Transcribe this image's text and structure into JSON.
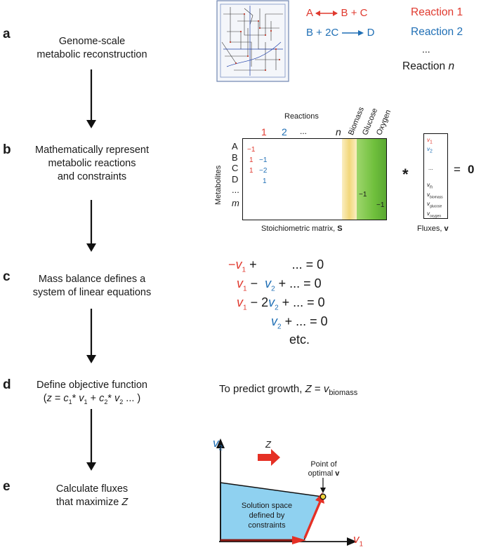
{
  "steps": [
    {
      "letter": "a",
      "line1": "Genome-scale",
      "line2": "metabolic reconstruction"
    },
    {
      "letter": "b",
      "line1": "Mathematically represent",
      "line2": "metabolic reactions",
      "line3": "and constraints"
    },
    {
      "letter": "c",
      "line1": "Mass balance defines a",
      "line2": "system of linear equations"
    },
    {
      "letter": "d",
      "line1": "Define objective function"
    },
    {
      "letter": "e",
      "line1": "Calculate fluxes",
      "line2": "that maximize Z"
    }
  ],
  "objective_formula": {
    "open": "(",
    "z": "z",
    "eq": " = ",
    "c1": "c",
    "sub1": "1",
    "mult1": "* ",
    "v1": "v",
    "vsub1": "1",
    "plus": " + ",
    "c2": "c",
    "sub2": "2",
    "mult2": "* ",
    "v2": "v",
    "vsub2": "2",
    "tail": "  ... )"
  },
  "reactions": {
    "r1_left": "A",
    "r1_right": "B + C",
    "r1_label": "Reaction 1",
    "r2_left": "B + 2C",
    "r2_right": "D",
    "r2_label": "Reaction 2",
    "dots": "...",
    "rn_label": "Reaction ",
    "rn_italic": "n"
  },
  "matrix": {
    "header": "Reactions",
    "col_labels": [
      "1",
      "2",
      "...",
      "n"
    ],
    "special_cols": [
      "Biomass",
      "Glucose",
      "Oxygen"
    ],
    "axis_label": "Metabolites",
    "row_labels": [
      "A",
      "B",
      "C",
      "D",
      "...",
      "m"
    ],
    "col1_entries": [
      "−1",
      "1",
      "1"
    ],
    "col2_entries": [
      "−1",
      "−2",
      "1"
    ],
    "glucose_entry": "−1",
    "oxygen_entry": "−1",
    "caption_prefix": "Stoichiometric matrix, ",
    "caption_bold": "S",
    "times": "*",
    "equals": "=",
    "zero": "0"
  },
  "flux_vector": {
    "v1": "v",
    "v1_sub": "1",
    "v2": "v",
    "v2_sub": "2",
    "dots": "...",
    "vn": "v",
    "vn_sub": "n",
    "vb": "v",
    "vb_sub": "biomass",
    "vg": "v",
    "vg_sub": "glucose",
    "vo": "v",
    "vo_sub": "oxygen",
    "caption_prefix": "Fluxes, ",
    "caption_bold": "v"
  },
  "equations": {
    "e1_minus": "−",
    "e1_v": "v",
    "e1_sub": "1",
    "e1_rest": " +          ... = 0",
    "e2_v": "v",
    "e2_sub": "1",
    "e2_op": " −  ",
    "e2_v2": "v",
    "e2_sub2": "2",
    "e2_rest": " + ... = 0",
    "e3_v": "v",
    "e3_sub": "1",
    "e3_op": " − 2",
    "e3_v2": "v",
    "e3_sub2": "2",
    "e3_rest": " + ... = 0",
    "e4_v2": "v",
    "e4_sub2": "2",
    "e4_rest": " + ... = 0",
    "etc": "etc."
  },
  "growth": {
    "prefix": "To predict growth, ",
    "z": "Z",
    "eq": " = ",
    "v": "v",
    "sub": "biomass"
  },
  "plot": {
    "y_axis": "v",
    "y_sub": "2",
    "x_axis": "v",
    "x_sub": "1",
    "z_label": "Z",
    "point_line1": "Point of",
    "point_line2": "optimal ",
    "point_bold": "v",
    "region_line1": "Solution space",
    "region_line2": "defined by",
    "region_line3": "constraints"
  },
  "colors": {
    "red": "#e03a2f",
    "blue": "#1f6fb5",
    "region": "#8fd1f0",
    "yellow": "#f2d77a",
    "green": "#6fbf3c"
  }
}
